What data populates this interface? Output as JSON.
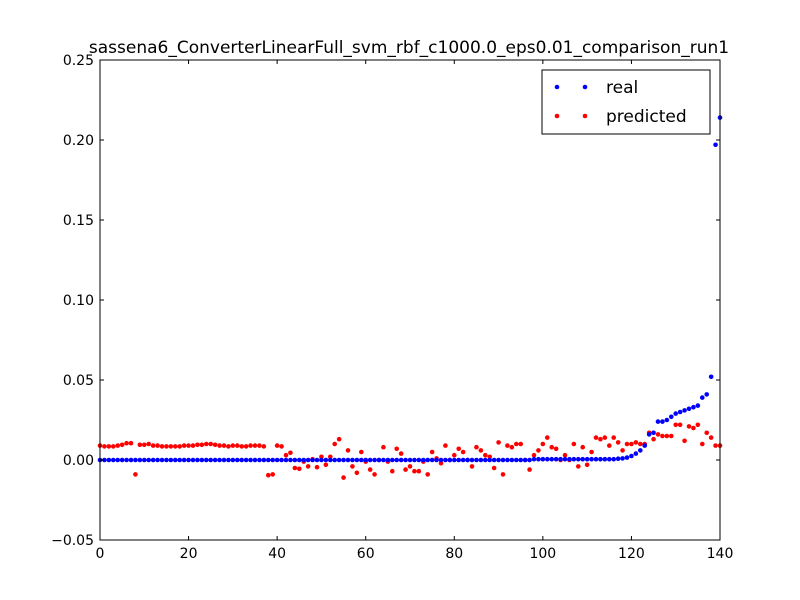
{
  "chart_data": {
    "type": "scatter",
    "title": "sassena6_ConverterLinearFull_svm_rbf_c1000.0_eps0.01_comparison_run1",
    "xlabel": "",
    "ylabel": "",
    "xlim": [
      0,
      140
    ],
    "ylim": [
      -0.05,
      0.25
    ],
    "xticks": [
      0,
      20,
      40,
      60,
      80,
      100,
      120,
      140
    ],
    "yticks": [
      -0.05,
      0.0,
      0.05,
      0.1,
      0.15,
      0.2,
      0.25
    ],
    "xtick_labels": [
      "0",
      "20",
      "40",
      "60",
      "80",
      "100",
      "120",
      "140"
    ],
    "ytick_labels": [
      "−0.05",
      "0.00",
      "0.05",
      "0.10",
      "0.15",
      "0.20",
      "0.25"
    ],
    "grid": false,
    "legend": {
      "position": "top-right",
      "entries": [
        "real",
        "predicted"
      ]
    },
    "series": [
      {
        "name": "real",
        "color": "#0000ff",
        "x": [
          0,
          1,
          2,
          3,
          4,
          5,
          6,
          7,
          8,
          9,
          10,
          11,
          12,
          13,
          14,
          15,
          16,
          17,
          18,
          19,
          20,
          21,
          22,
          23,
          24,
          25,
          26,
          27,
          28,
          29,
          30,
          31,
          32,
          33,
          34,
          35,
          36,
          37,
          38,
          39,
          40,
          41,
          42,
          43,
          44,
          45,
          46,
          47,
          48,
          49,
          50,
          51,
          52,
          53,
          54,
          55,
          56,
          57,
          58,
          59,
          60,
          61,
          62,
          63,
          64,
          65,
          66,
          67,
          68,
          69,
          70,
          71,
          72,
          73,
          74,
          75,
          76,
          77,
          78,
          79,
          80,
          81,
          82,
          83,
          84,
          85,
          86,
          87,
          88,
          89,
          90,
          91,
          92,
          93,
          94,
          95,
          96,
          97,
          98,
          99,
          100,
          101,
          102,
          103,
          104,
          105,
          106,
          107,
          108,
          109,
          110,
          111,
          112,
          113,
          114,
          115,
          116,
          117,
          118,
          119,
          120,
          121,
          122,
          123,
          124,
          125,
          126,
          127,
          128,
          129,
          130,
          131,
          132,
          133,
          134,
          135,
          136,
          137,
          138,
          139,
          140
        ],
        "y": [
          0,
          0,
          0,
          0,
          0,
          0,
          0,
          0,
          0,
          0,
          0,
          0,
          0,
          0,
          0,
          0,
          0,
          0,
          0,
          0,
          0,
          0,
          0,
          0,
          0,
          0,
          0,
          0,
          0,
          0,
          0,
          0,
          0,
          0,
          0,
          0,
          0,
          0,
          0,
          0,
          0,
          0,
          0,
          0,
          0,
          0,
          0,
          0,
          0,
          0,
          0,
          0,
          0,
          0,
          0,
          0,
          0,
          0,
          0,
          0,
          0,
          0,
          0,
          0,
          0,
          0,
          0,
          0,
          0,
          0,
          0,
          0,
          0,
          0,
          0,
          0,
          0,
          0,
          0,
          0,
          0,
          0,
          0,
          0,
          0,
          0,
          0,
          0,
          0,
          0,
          0,
          0,
          0,
          0,
          0,
          0,
          0,
          0,
          0.0005,
          0.0005,
          0.0005,
          0.0005,
          0.0005,
          0.0005,
          0.0005,
          0.0005,
          0.0005,
          0.0005,
          0.0005,
          0.0005,
          0.0005,
          0.0005,
          0.0005,
          0.0005,
          0.0005,
          0.0005,
          0.0005,
          0.0008,
          0.001,
          0.0015,
          0.0025,
          0.004,
          0.006,
          0.009,
          0.016,
          0.017,
          0.024,
          0.024,
          0.025,
          0.027,
          0.029,
          0.03,
          0.031,
          0.032,
          0.033,
          0.034,
          0.039,
          0.041,
          0.052,
          0.197,
          0.214
        ]
      },
      {
        "name": "predicted",
        "color": "#ff0000",
        "x": [
          0,
          1,
          2,
          3,
          4,
          5,
          6,
          7,
          8,
          9,
          10,
          11,
          12,
          13,
          14,
          15,
          16,
          17,
          18,
          19,
          20,
          21,
          22,
          23,
          24,
          25,
          26,
          27,
          28,
          29,
          30,
          31,
          32,
          33,
          34,
          35,
          36,
          37,
          38,
          39,
          40,
          41,
          42,
          43,
          44,
          45,
          46,
          47,
          48,
          49,
          50,
          51,
          52,
          53,
          54,
          55,
          56,
          57,
          58,
          59,
          60,
          61,
          62,
          63,
          64,
          65,
          66,
          67,
          68,
          69,
          70,
          71,
          72,
          73,
          74,
          75,
          76,
          77,
          78,
          79,
          80,
          81,
          82,
          83,
          84,
          85,
          86,
          87,
          88,
          89,
          90,
          91,
          92,
          93,
          94,
          95,
          96,
          97,
          98,
          99,
          100,
          101,
          102,
          103,
          104,
          105,
          106,
          107,
          108,
          109,
          110,
          111,
          112,
          113,
          114,
          115,
          116,
          117,
          118,
          119,
          120,
          121,
          122,
          123,
          124,
          125,
          126,
          127,
          128,
          129,
          130,
          131,
          132,
          133,
          134,
          135,
          136,
          137,
          138,
          139,
          140
        ],
        "y": [
          0.009,
          0.0085,
          0.0085,
          0.0085,
          0.009,
          0.0095,
          0.0105,
          0.0105,
          -0.009,
          0.0095,
          0.0095,
          0.01,
          0.009,
          0.009,
          0.0085,
          0.0085,
          0.0085,
          0.0085,
          0.0085,
          0.009,
          0.009,
          0.009,
          0.0095,
          0.0095,
          0.01,
          0.01,
          0.0095,
          0.009,
          0.009,
          0.0085,
          0.009,
          0.009,
          0.0085,
          0.0085,
          0.009,
          0.009,
          0.009,
          0.0085,
          -0.0095,
          -0.009,
          0.009,
          0.0085,
          0.003,
          0.0045,
          -0.005,
          -0.0055,
          -0.001,
          -0.004,
          0.0005,
          -0.0045,
          0.002,
          -0.003,
          0.002,
          0.01,
          0.013,
          -0.011,
          0.006,
          -0.004,
          -0.008,
          0.005,
          -0.001,
          -0.006,
          -0.009,
          0.0,
          0.008,
          -0.001,
          -0.007,
          0.007,
          0.004,
          -0.006,
          -0.004,
          -0.007,
          -0.007,
          -0.001,
          -0.009,
          0.005,
          0.001,
          -0.002,
          0.009,
          0.0,
          0.003,
          0.007,
          0.005,
          0.0,
          -0.004,
          0.008,
          0.006,
          0.003,
          0.002,
          -0.005,
          0.011,
          -0.009,
          0.009,
          0.008,
          0.01,
          0.01,
          0.0,
          -0.006,
          0.003,
          0.006,
          0.01,
          0.014,
          0.008,
          0.007,
          0.0,
          0.003,
          0.0,
          0.01,
          -0.004,
          0.008,
          -0.003,
          0.005,
          0.014,
          0.013,
          0.014,
          0.009,
          0.014,
          0.011,
          0.006,
          0.01,
          0.01,
          0.011,
          0.01,
          0.01,
          0.017,
          0.013,
          0.016,
          0.015,
          0.015,
          0.015,
          0.022,
          0.022,
          0.012,
          0.021,
          0.02,
          0.022,
          0.01,
          0.017,
          0.014,
          0.009,
          0.009
        ]
      }
    ]
  }
}
